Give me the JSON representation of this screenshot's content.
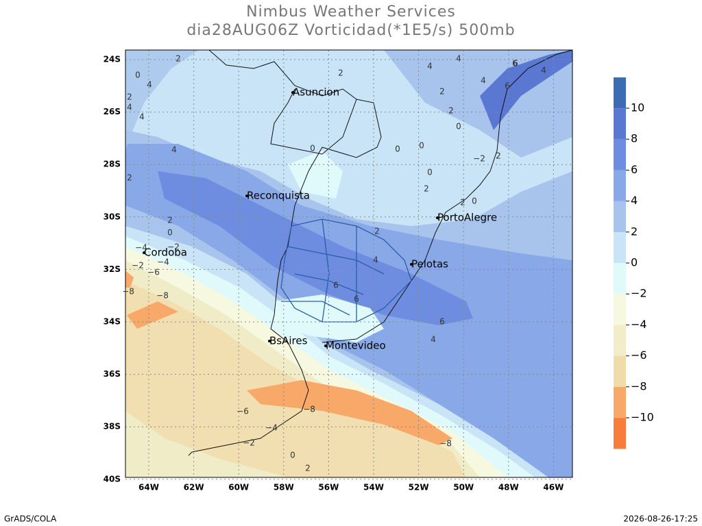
{
  "header": {
    "title": "Nimbus Weather Services",
    "subtitle": "dia28AUG06Z Vorticidad(*1E5/s) 500mb"
  },
  "map": {
    "lat_labels": [
      "24S",
      "26S",
      "28S",
      "30S",
      "32S",
      "34S",
      "36S",
      "38S",
      "40S"
    ],
    "lon_labels": [
      "64W",
      "62W",
      "60W",
      "58W",
      "56W",
      "54W",
      "52W",
      "50W",
      "48W",
      "46W"
    ],
    "cities": [
      "Asuncion",
      "Reconquista",
      "PortoAlegre",
      "Cordoba",
      "Pelotas",
      "BsAires",
      "Montevideo"
    ],
    "contour_labels": [
      "2",
      "0",
      "4",
      "2",
      "4",
      "4",
      "2",
      "2",
      "0",
      "0",
      "0",
      "0",
      "0",
      "−2",
      "2",
      "4",
      "2",
      "6",
      "4",
      "4",
      "2",
      "2",
      "0",
      "−4",
      "−2",
      "−4",
      "−6",
      "−2",
      "−8",
      "−8",
      "4",
      "6",
      "6",
      "6",
      "4",
      "−6",
      "−8",
      "−4",
      "−2",
      "0",
      "2",
      "−8",
      "2",
      "6",
      "2",
      "0",
      "2",
      "4",
      "4",
      "6"
    ]
  },
  "colorbar": {
    "labels": [
      "10",
      "8",
      "6",
      "4",
      "2",
      "0",
      "−2",
      "−4",
      "−6",
      "−8",
      "−10"
    ]
  },
  "footer": {
    "left": "GrADS/COLA",
    "right": "2026-08-26-17:25"
  }
}
